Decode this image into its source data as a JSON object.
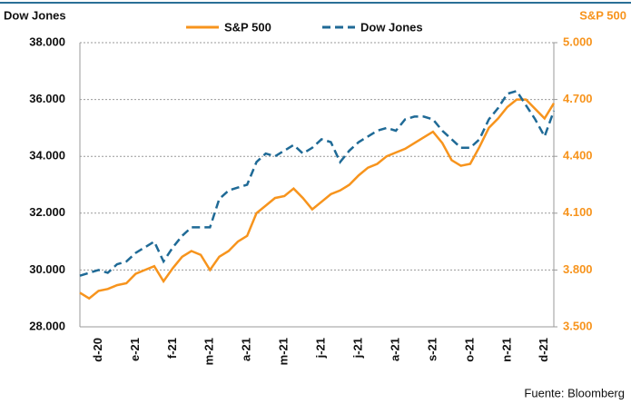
{
  "chart_data": {
    "type": "line",
    "y_label": "Dow Jones",
    "y2_label": "S&P 500",
    "source": "Fuente: Bloomberg",
    "categories": [
      null,
      null,
      "d-20",
      null,
      null,
      null,
      "e-21",
      null,
      null,
      null,
      "f-21",
      null,
      null,
      null,
      "m-21",
      null,
      null,
      null,
      "a-21",
      null,
      null,
      null,
      "m-21",
      null,
      null,
      null,
      "j-21",
      null,
      null,
      null,
      "j-21",
      null,
      null,
      null,
      "a-21",
      null,
      null,
      null,
      "s-21",
      null,
      null,
      null,
      "o-21",
      null,
      null,
      null,
      "n-21",
      null,
      null,
      null,
      "d-21",
      null
    ],
    "series": [
      {
        "name": "S&P 500",
        "color": "#f7941d",
        "axis": "y2",
        "dash": false,
        "values": [
          3680,
          3650,
          3690,
          3700,
          3720,
          3730,
          3780,
          3800,
          3820,
          3740,
          3810,
          3870,
          3900,
          3880,
          3800,
          3870,
          3900,
          3950,
          3980,
          4100,
          4140,
          4180,
          4190,
          4230,
          4180,
          4120,
          4160,
          4200,
          4220,
          4250,
          4300,
          4340,
          4360,
          4400,
          4420,
          4440,
          4470,
          4500,
          4530,
          4470,
          4380,
          4350,
          4360,
          4450,
          4550,
          4600,
          4660,
          4700,
          4700,
          4650,
          4600,
          4680
        ]
      },
      {
        "name": "Dow Jones",
        "color": "#1f6a96",
        "axis": "y",
        "dash": true,
        "values": [
          29800,
          29900,
          30000,
          29900,
          30200,
          30300,
          30600,
          30800,
          31000,
          30300,
          30800,
          31200,
          31500,
          31500,
          31500,
          32500,
          32800,
          32900,
          33000,
          33800,
          34100,
          34000,
          34200,
          34400,
          34100,
          34300,
          34600,
          34500,
          33800,
          34200,
          34500,
          34700,
          34900,
          35000,
          34900,
          35300,
          35400,
          35400,
          35300,
          34900,
          34600,
          34300,
          34300,
          34600,
          35300,
          35700,
          36200,
          36300,
          35800,
          35300,
          34700,
          35600
        ]
      }
    ],
    "ylim": [
      28000,
      38000
    ],
    "yticks": [
      {
        "value": 28000,
        "label": "28.000"
      },
      {
        "value": 30000,
        "label": "30.000"
      },
      {
        "value": 32000,
        "label": "32.000"
      },
      {
        "value": 34000,
        "label": "34.000"
      },
      {
        "value": 36000,
        "label": "36.000"
      },
      {
        "value": 38000,
        "label": "38.000"
      }
    ],
    "y2lim": [
      3500,
      5000
    ],
    "y2ticks": [
      {
        "value": 3500,
        "label": "3.500"
      },
      {
        "value": 3800,
        "label": "3.800"
      },
      {
        "value": 4100,
        "label": "4.100"
      },
      {
        "value": 4400,
        "label": "4.400"
      },
      {
        "value": 4700,
        "label": "4.700"
      },
      {
        "value": 5000,
        "label": "5.000"
      }
    ],
    "grid": true,
    "legend": "top"
  }
}
